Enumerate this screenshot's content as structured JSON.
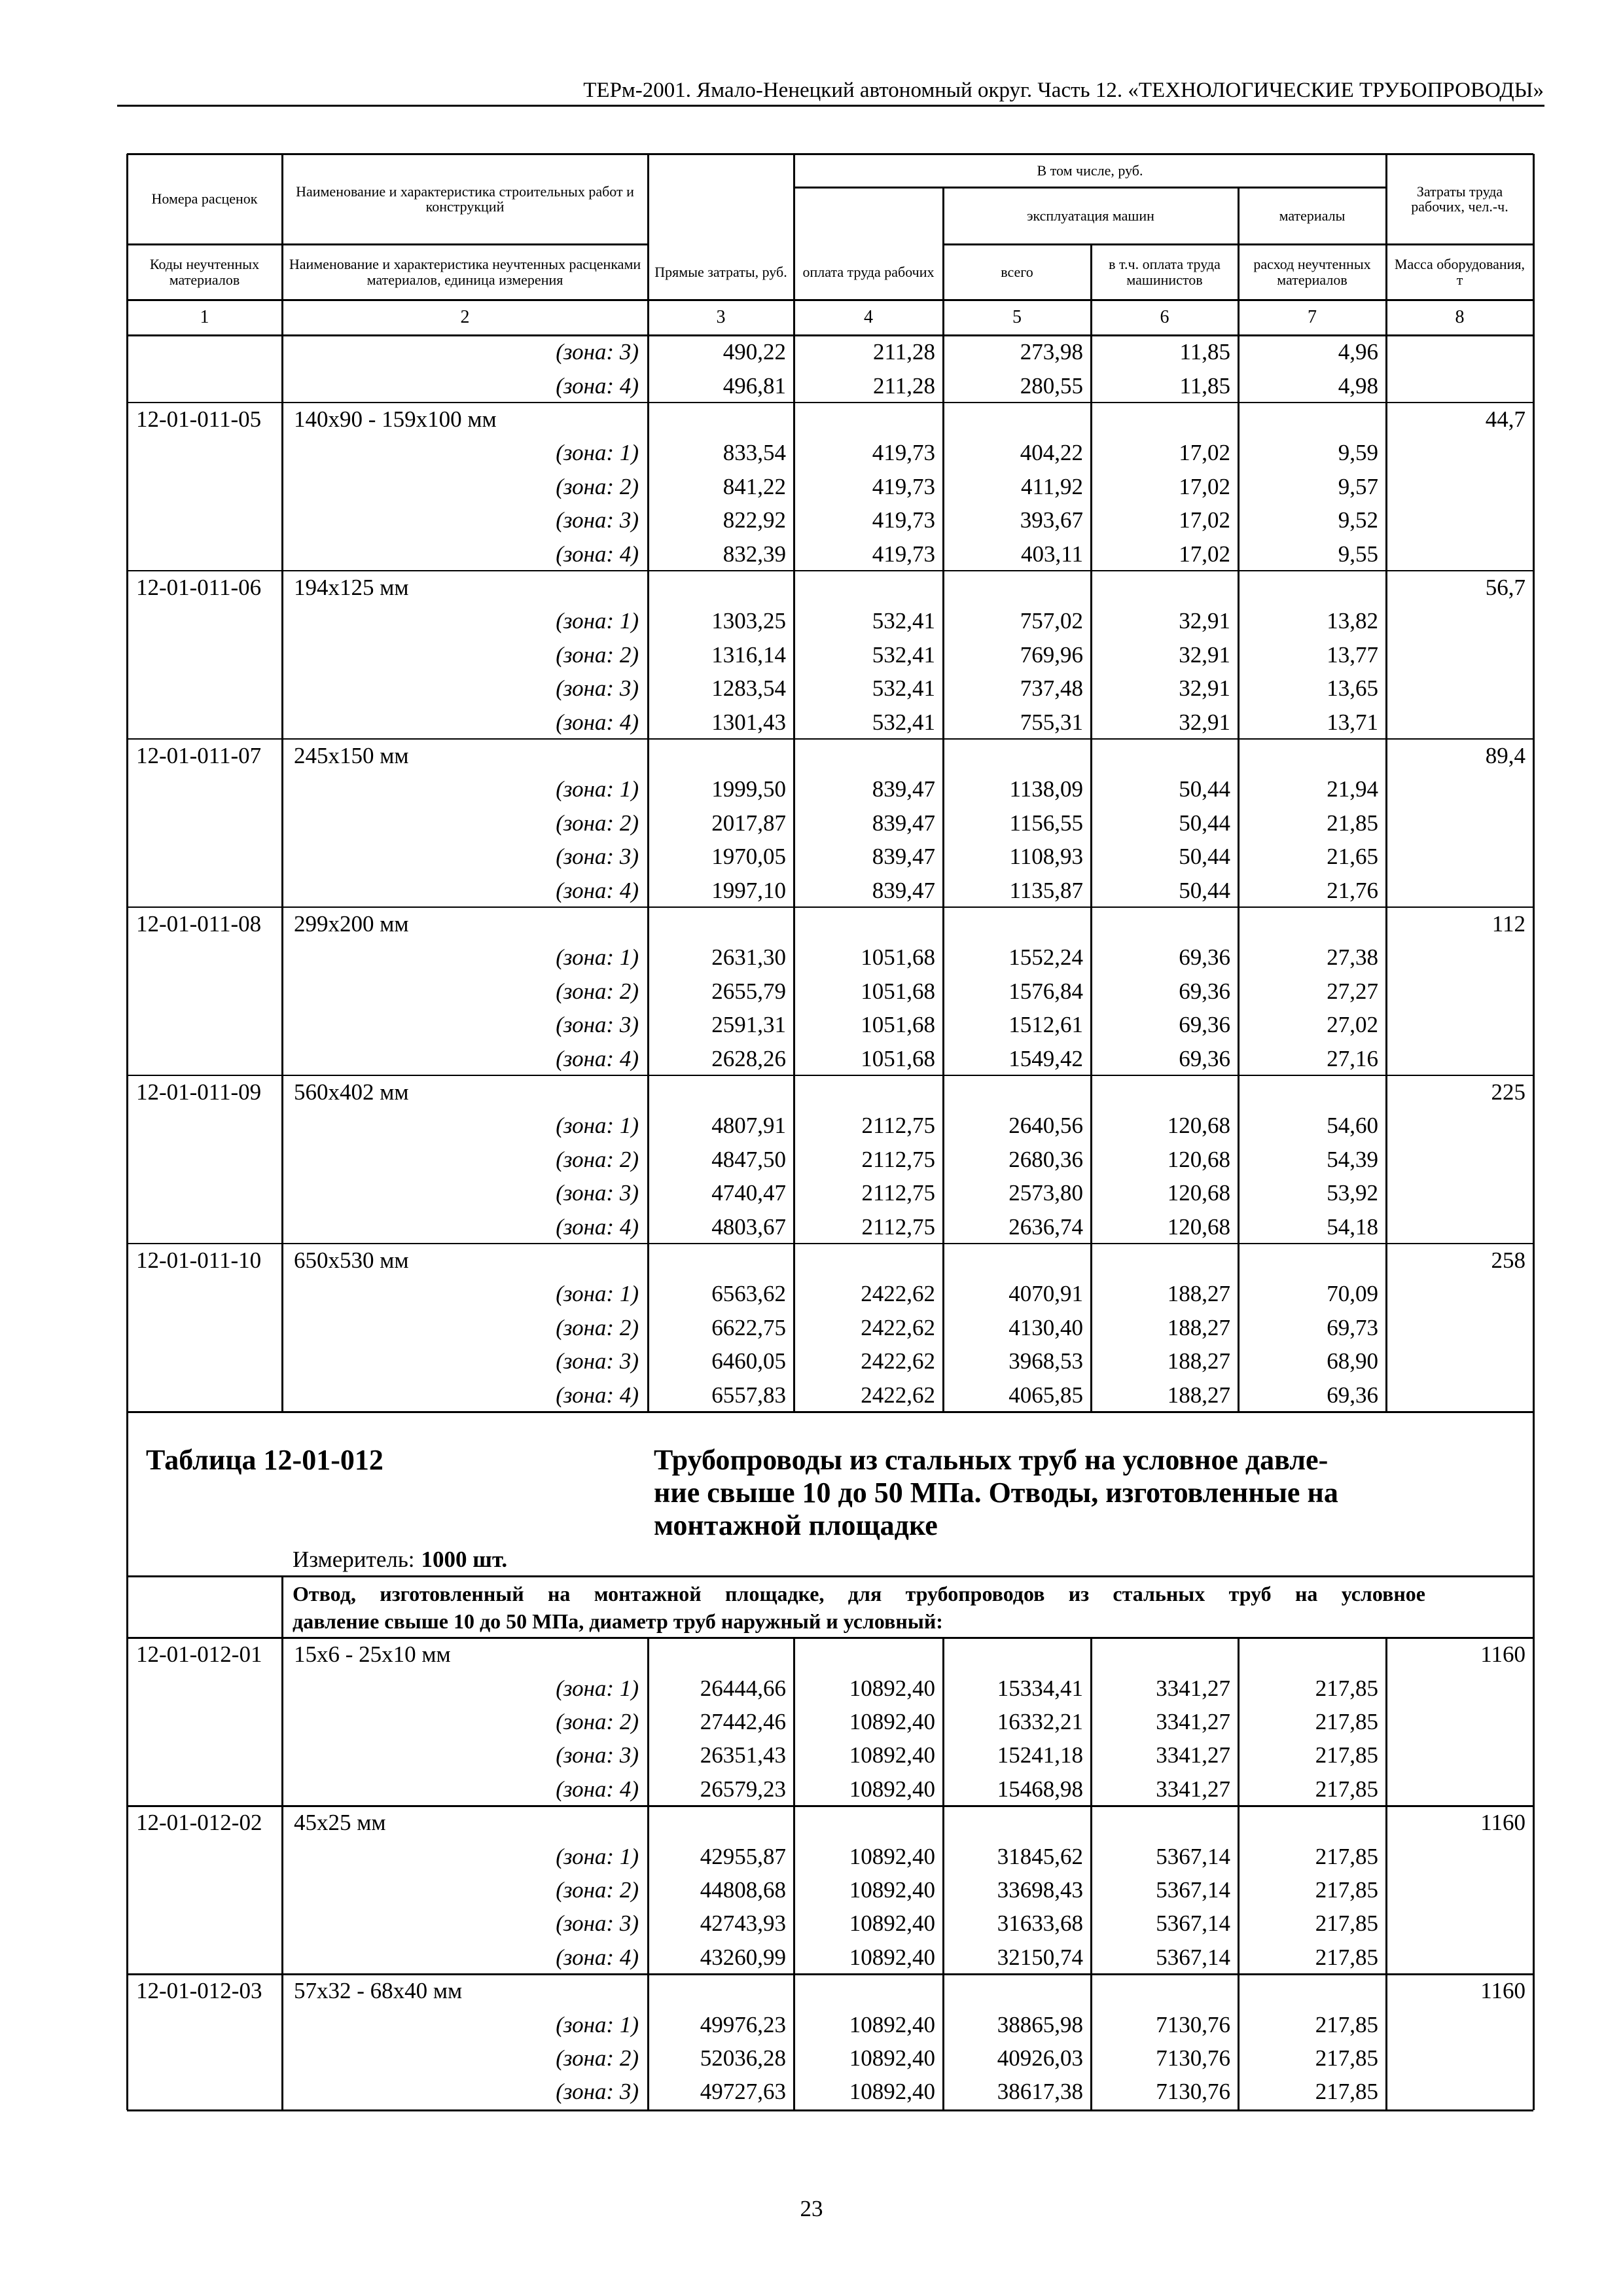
{
  "header": {
    "title": "ТЕРм-2001. Ямало-Ненецкий автономный округ. Часть 12. «ТЕХНОЛОГИЧЕСКИЕ ТРУБОПРОВОДЫ»"
  },
  "table_header": {
    "codes": "Номера расценок",
    "name": "Наименование и характеристика строительных работ и конструкций",
    "including": "В том числе, руб.",
    "machines": "эксплуатация машин",
    "materials": "материалы",
    "labor": "Затраты труда рабочих, чел.-ч.",
    "material_codes": "Коды неучтенных материалов",
    "material_names": "Наименование и характеристика неучтенных расценками материалов, единица измерения",
    "direct": "Прямые затраты, руб.",
    "wages": "оплата труда рабочих",
    "total": "всего",
    "operators": "в т.ч. оплата труда машинистов",
    "material_use": "расход неучтенных материалов",
    "mass": "Масса оборудования, т"
  },
  "column_numbers": [
    "1",
    "2",
    "3",
    "4",
    "5",
    "6",
    "7",
    "8"
  ],
  "groups_top": [
    {
      "rows": [
        {
          "zone": "(зона: 3)",
          "values": [
            "490,22",
            "211,28",
            "273,98",
            "11,85",
            "4,96"
          ]
        },
        {
          "zone": "(зона: 4)",
          "values": [
            "496,81",
            "211,28",
            "280,55",
            "11,85",
            "4,98"
          ]
        }
      ]
    },
    {
      "code": "12-01-011-05",
      "name": "140х90 - 159х100 мм",
      "mass": "44,7",
      "rows": [
        {
          "zone": "(зона: 1)",
          "values": [
            "833,54",
            "419,73",
            "404,22",
            "17,02",
            "9,59"
          ]
        },
        {
          "zone": "(зона: 2)",
          "values": [
            "841,22",
            "419,73",
            "411,92",
            "17,02",
            "9,57"
          ]
        },
        {
          "zone": "(зона: 3)",
          "values": [
            "822,92",
            "419,73",
            "393,67",
            "17,02",
            "9,52"
          ]
        },
        {
          "zone": "(зона: 4)",
          "values": [
            "832,39",
            "419,73",
            "403,11",
            "17,02",
            "9,55"
          ]
        }
      ]
    },
    {
      "code": "12-01-011-06",
      "name": "194х125 мм",
      "mass": "56,7",
      "rows": [
        {
          "zone": "(зона: 1)",
          "values": [
            "1303,25",
            "532,41",
            "757,02",
            "32,91",
            "13,82"
          ]
        },
        {
          "zone": "(зона: 2)",
          "values": [
            "1316,14",
            "532,41",
            "769,96",
            "32,91",
            "13,77"
          ]
        },
        {
          "zone": "(зона: 3)",
          "values": [
            "1283,54",
            "532,41",
            "737,48",
            "32,91",
            "13,65"
          ]
        },
        {
          "zone": "(зона: 4)",
          "values": [
            "1301,43",
            "532,41",
            "755,31",
            "32,91",
            "13,71"
          ]
        }
      ]
    },
    {
      "code": "12-01-011-07",
      "name": "245х150 мм",
      "mass": "89,4",
      "rows": [
        {
          "zone": "(зона: 1)",
          "values": [
            "1999,50",
            "839,47",
            "1138,09",
            "50,44",
            "21,94"
          ]
        },
        {
          "zone": "(зона: 2)",
          "values": [
            "2017,87",
            "839,47",
            "1156,55",
            "50,44",
            "21,85"
          ]
        },
        {
          "zone": "(зона: 3)",
          "values": [
            "1970,05",
            "839,47",
            "1108,93",
            "50,44",
            "21,65"
          ]
        },
        {
          "zone": "(зона: 4)",
          "values": [
            "1997,10",
            "839,47",
            "1135,87",
            "50,44",
            "21,76"
          ]
        }
      ]
    },
    {
      "code": "12-01-011-08",
      "name": "299х200 мм",
      "mass": "112",
      "rows": [
        {
          "zone": "(зона: 1)",
          "values": [
            "2631,30",
            "1051,68",
            "1552,24",
            "69,36",
            "27,38"
          ]
        },
        {
          "zone": "(зона: 2)",
          "values": [
            "2655,79",
            "1051,68",
            "1576,84",
            "69,36",
            "27,27"
          ]
        },
        {
          "zone": "(зона: 3)",
          "values": [
            "2591,31",
            "1051,68",
            "1512,61",
            "69,36",
            "27,02"
          ]
        },
        {
          "zone": "(зона: 4)",
          "values": [
            "2628,26",
            "1051,68",
            "1549,42",
            "69,36",
            "27,16"
          ]
        }
      ]
    },
    {
      "code": "12-01-011-09",
      "name": "560х402 мм",
      "mass": "225",
      "rows": [
        {
          "zone": "(зона: 1)",
          "values": [
            "4807,91",
            "2112,75",
            "2640,56",
            "120,68",
            "54,60"
          ]
        },
        {
          "zone": "(зона: 2)",
          "values": [
            "4847,50",
            "2112,75",
            "2680,36",
            "120,68",
            "54,39"
          ]
        },
        {
          "zone": "(зона: 3)",
          "values": [
            "4740,47",
            "2112,75",
            "2573,80",
            "120,68",
            "53,92"
          ]
        },
        {
          "zone": "(зона: 4)",
          "values": [
            "4803,67",
            "2112,75",
            "2636,74",
            "120,68",
            "54,18"
          ]
        }
      ]
    },
    {
      "code": "12-01-011-10",
      "name": "650х530 мм",
      "mass": "258",
      "rows": [
        {
          "zone": "(зона: 1)",
          "values": [
            "6563,62",
            "2422,62",
            "4070,91",
            "188,27",
            "70,09"
          ]
        },
        {
          "zone": "(зона: 2)",
          "values": [
            "6622,75",
            "2422,62",
            "4130,40",
            "188,27",
            "69,73"
          ]
        },
        {
          "zone": "(зона: 3)",
          "values": [
            "6460,05",
            "2422,62",
            "3968,53",
            "188,27",
            "68,90"
          ]
        },
        {
          "zone": "(зона: 4)",
          "values": [
            "6557,83",
            "2422,62",
            "4065,85",
            "188,27",
            "69,36"
          ]
        }
      ]
    }
  ],
  "table2": {
    "label": "Таблица 12-01-012",
    "title_lines": [
      "Трубопроводы из стальных труб на условное давле-",
      "ние свыше 10 до 50 МПа. Отводы, изготовленные на",
      "монтажной площадке"
    ],
    "unit_label": "Измеритель:",
    "unit": "1000 шт.",
    "description_lines": [
      "Отвод, изготовленный на монтажной площадке, для трубопроводов из стальных труб на условное",
      "давление свыше 10 до 50 МПа, диаметр труб наружный и условный:"
    ]
  },
  "groups_bottom": [
    {
      "code": "12-01-012-01",
      "name": "15х6 - 25х10 мм",
      "mass": "1160",
      "rows": [
        {
          "zone": "(зона: 1)",
          "values": [
            "26444,66",
            "10892,40",
            "15334,41",
            "3341,27",
            "217,85"
          ]
        },
        {
          "zone": "(зона: 2)",
          "values": [
            "27442,46",
            "10892,40",
            "16332,21",
            "3341,27",
            "217,85"
          ]
        },
        {
          "zone": "(зона: 3)",
          "values": [
            "26351,43",
            "10892,40",
            "15241,18",
            "3341,27",
            "217,85"
          ]
        },
        {
          "zone": "(зона: 4)",
          "values": [
            "26579,23",
            "10892,40",
            "15468,98",
            "3341,27",
            "217,85"
          ]
        }
      ]
    },
    {
      "code": "12-01-012-02",
      "name": "45х25 мм",
      "mass": "1160",
      "rows": [
        {
          "zone": "(зона: 1)",
          "values": [
            "42955,87",
            "10892,40",
            "31845,62",
            "5367,14",
            "217,85"
          ]
        },
        {
          "zone": "(зона: 2)",
          "values": [
            "44808,68",
            "10892,40",
            "33698,43",
            "5367,14",
            "217,85"
          ]
        },
        {
          "zone": "(зона: 3)",
          "values": [
            "42743,93",
            "10892,40",
            "31633,68",
            "5367,14",
            "217,85"
          ]
        },
        {
          "zone": "(зона: 4)",
          "values": [
            "43260,99",
            "10892,40",
            "32150,74",
            "5367,14",
            "217,85"
          ]
        }
      ]
    },
    {
      "code": "12-01-012-03",
      "name": "57х32 - 68х40 мм",
      "mass": "1160",
      "rows": [
        {
          "zone": "(зона: 1)",
          "values": [
            "49976,23",
            "10892,40",
            "38865,98",
            "7130,76",
            "217,85"
          ]
        },
        {
          "zone": "(зона: 2)",
          "values": [
            "52036,28",
            "10892,40",
            "40926,03",
            "7130,76",
            "217,85"
          ]
        },
        {
          "zone": "(зона: 3)",
          "values": [
            "49727,63",
            "10892,40",
            "38617,38",
            "7130,76",
            "217,85"
          ]
        }
      ]
    }
  ],
  "page_number": "23"
}
